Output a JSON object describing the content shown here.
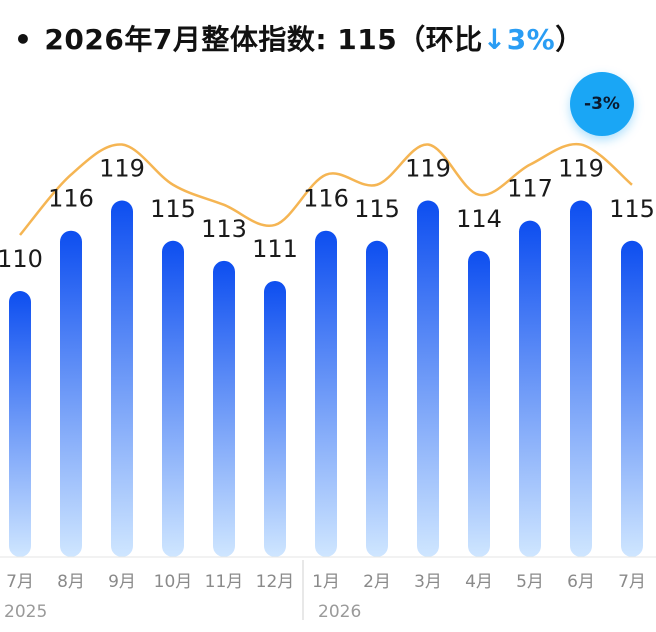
{
  "title": {
    "bullet": "•",
    "main": "2026年7月整体指数: 115（环比",
    "arrow": "↓",
    "change": "3%",
    "close": "）"
  },
  "badge": "-3%",
  "chart_data": {
    "type": "bar",
    "categories": [
      "7月",
      "8月",
      "9月",
      "10月",
      "11月",
      "12月",
      "1月",
      "2月",
      "3月",
      "4月",
      "5月",
      "6月",
      "7月"
    ],
    "values": [
      110,
      116,
      119,
      115,
      113,
      111,
      116,
      115,
      119,
      114,
      117,
      119,
      115
    ],
    "year_labels": [
      {
        "text": "2025",
        "start_index": 0
      },
      {
        "text": "2026",
        "start_index": 6
      }
    ],
    "overlay_line": true,
    "colors": {
      "bar_top": "#0d4ef0",
      "bar_bottom": "#cfe6ff",
      "line": "#f5b553"
    }
  }
}
